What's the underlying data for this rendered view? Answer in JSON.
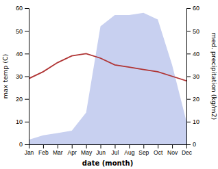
{
  "chart_data": {
    "type": "line",
    "categories": [
      "Jan",
      "Feb",
      "Mar",
      "Apr",
      "May",
      "Jun",
      "Jul",
      "Aug",
      "Sep",
      "Oct",
      "Nov",
      "Dec"
    ],
    "xlabel": "date (month)",
    "ylabel": "max temp (C)",
    "y2label": "med. precipitation (kg/m2)",
    "ylim": [
      0,
      60
    ],
    "yticks": [
      0,
      10,
      20,
      30,
      40,
      50,
      60
    ],
    "y2lim": [
      0,
      60
    ],
    "y2ticks": [
      0,
      10,
      20,
      30,
      40,
      50,
      60
    ],
    "grid": false,
    "series": [
      {
        "type": "area",
        "axis": "y2",
        "color": "#c8d0f0",
        "values": [
          2,
          4,
          5,
          6,
          14,
          52,
          57,
          57,
          58,
          55,
          35,
          10
        ]
      },
      {
        "type": "line",
        "color": "#b03535",
        "values": [
          29,
          32,
          36,
          39,
          40,
          38,
          35,
          34,
          33,
          32,
          30,
          28
        ]
      }
    ]
  }
}
